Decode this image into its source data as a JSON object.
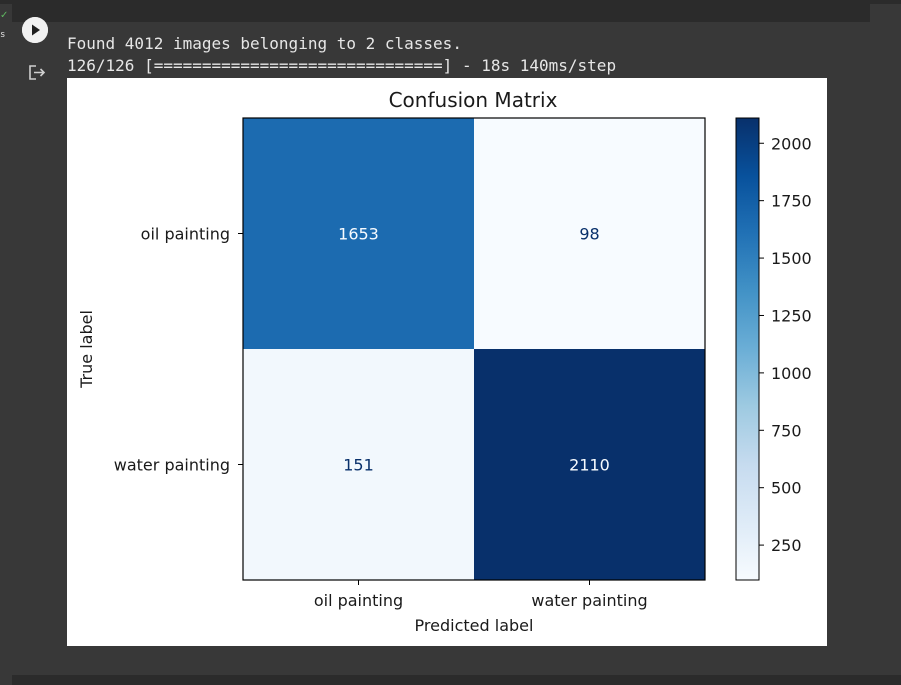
{
  "cell": {
    "status_check": "✓",
    "exec_time": "s",
    "run_icon": "play-icon",
    "output_icon": "output-redirect-icon"
  },
  "output": {
    "line1": "Found 4012 images belonging to 2 classes.",
    "line2": "126/126 [==============================] - 18s 140ms/step"
  },
  "chart_data": {
    "type": "heatmap",
    "title": "Confusion Matrix",
    "xlabel": "Predicted label",
    "ylabel": "True label",
    "x_categories": [
      "oil painting",
      "water painting"
    ],
    "y_categories": [
      "oil painting",
      "water painting"
    ],
    "values": [
      [
        1653,
        98
      ],
      [
        151,
        2110
      ]
    ],
    "colormap": "Blues",
    "vmin": 98,
    "vmax": 2110,
    "colorbar_ticks": [
      250,
      500,
      750,
      1000,
      1250,
      1500,
      1750,
      2000
    ]
  }
}
